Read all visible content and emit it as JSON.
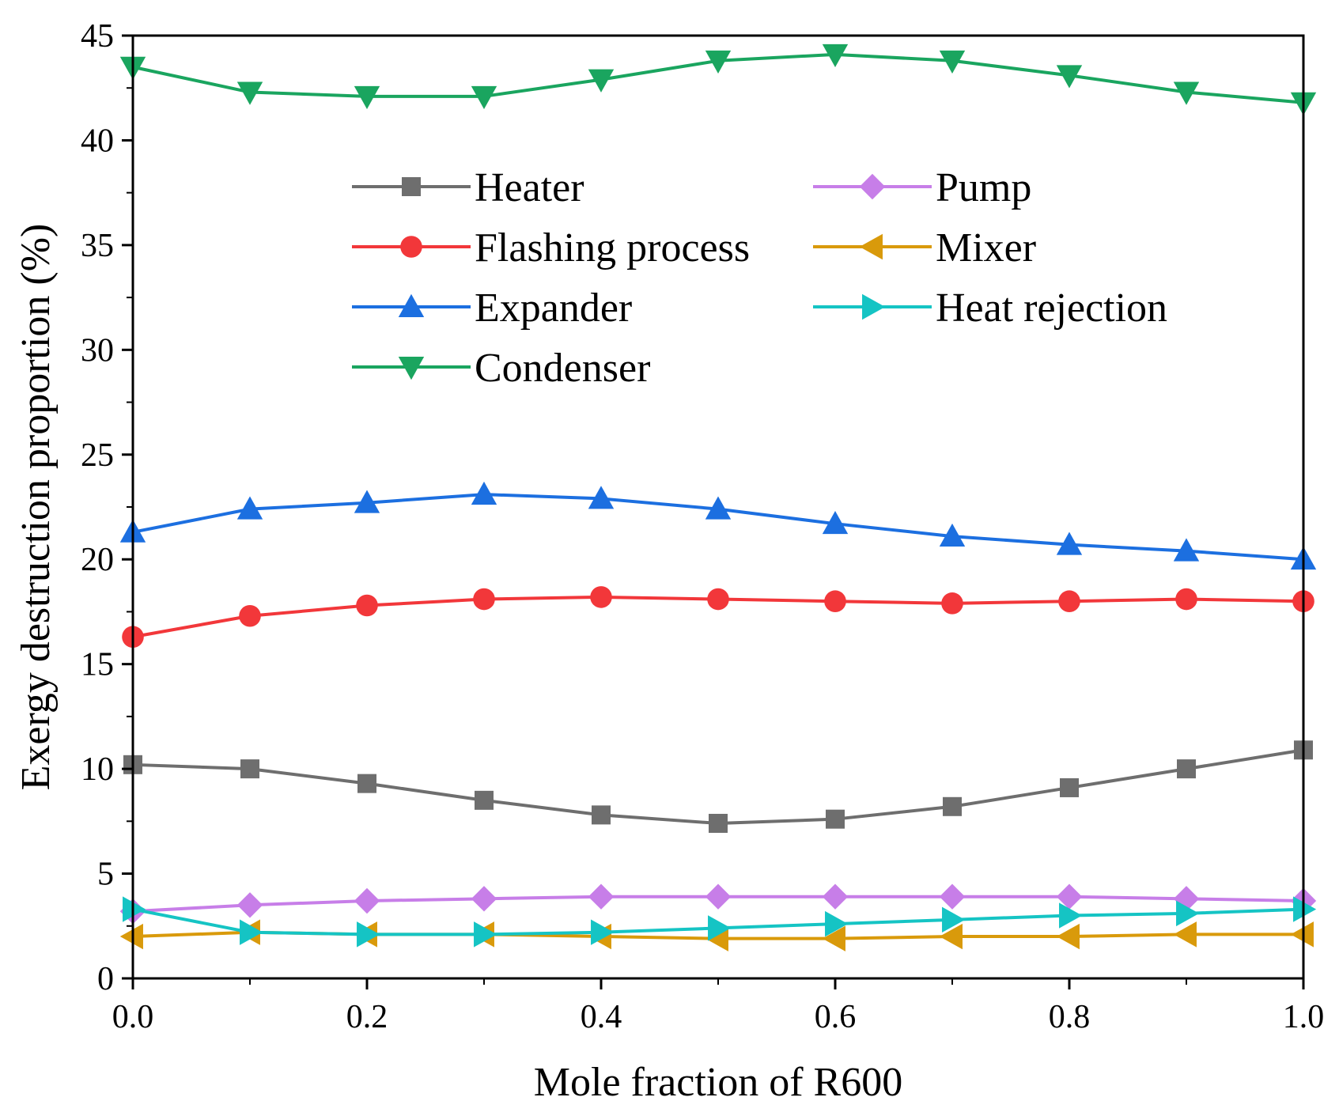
{
  "chart_data": {
    "type": "line",
    "title": "",
    "xlabel": "Mole fraction of R600",
    "ylabel": "Exergy destruction proportion (%)",
    "xlim": [
      0.0,
      1.0
    ],
    "ylim": [
      0,
      45
    ],
    "xticks": [
      "0.0",
      "0.2",
      "0.4",
      "0.6",
      "0.8",
      "1.0"
    ],
    "yticks": [
      "0",
      "5",
      "10",
      "15",
      "20",
      "25",
      "30",
      "35",
      "40",
      "45"
    ],
    "legend_position": "upper-middle",
    "x": [
      0.0,
      0.1,
      0.2,
      0.3,
      0.4,
      0.5,
      0.6,
      0.7,
      0.8,
      0.9,
      1.0
    ],
    "series": [
      {
        "name": "Heater",
        "color": "#6e6e6e",
        "marker": "square",
        "values": [
          10.2,
          10.0,
          9.3,
          8.5,
          7.8,
          7.4,
          7.6,
          8.2,
          9.1,
          10.0,
          10.9
        ]
      },
      {
        "name": "Flashing process",
        "color": "#f2373a",
        "marker": "circle",
        "values": [
          16.3,
          17.3,
          17.8,
          18.1,
          18.2,
          18.1,
          18.0,
          17.9,
          18.0,
          18.1,
          18.0
        ]
      },
      {
        "name": "Expander",
        "color": "#1c6fe0",
        "marker": "triangle-up",
        "values": [
          21.3,
          22.4,
          22.7,
          23.1,
          22.9,
          22.4,
          21.7,
          21.1,
          20.7,
          20.4,
          20.0
        ]
      },
      {
        "name": "Condenser",
        "color": "#1aa55f",
        "marker": "triangle-down",
        "values": [
          43.5,
          42.3,
          42.1,
          42.1,
          42.9,
          43.8,
          44.1,
          43.8,
          43.1,
          42.3,
          41.8
        ]
      },
      {
        "name": "Pump",
        "color": "#c77ee8",
        "marker": "diamond",
        "values": [
          3.2,
          3.5,
          3.7,
          3.8,
          3.9,
          3.9,
          3.9,
          3.9,
          3.9,
          3.8,
          3.7
        ]
      },
      {
        "name": "Mixer",
        "color": "#d99a0b",
        "marker": "triangle-left",
        "values": [
          2.0,
          2.2,
          2.1,
          2.1,
          2.0,
          1.9,
          1.9,
          2.0,
          2.0,
          2.1,
          2.1
        ]
      },
      {
        "name": "Heat rejection",
        "color": "#15c4c4",
        "marker": "triangle-right",
        "values": [
          3.3,
          2.2,
          2.1,
          2.1,
          2.2,
          2.4,
          2.6,
          2.8,
          3.0,
          3.1,
          3.3
        ]
      }
    ]
  }
}
